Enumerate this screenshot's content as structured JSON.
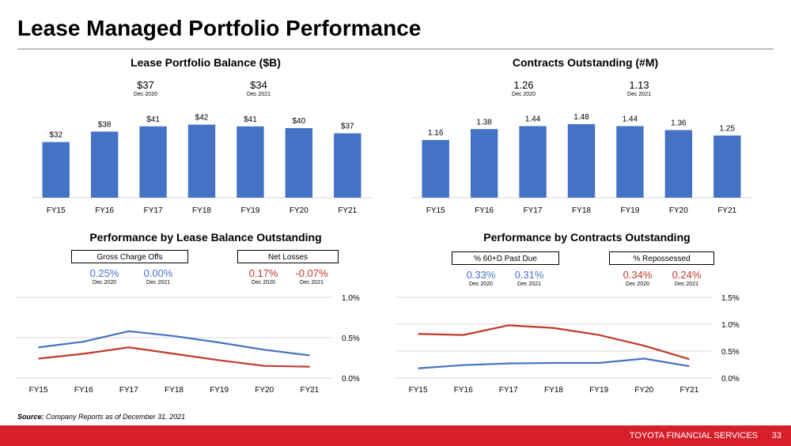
{
  "page": {
    "title": "Lease Managed Portfolio Performance",
    "source_label": "Source:",
    "source_text": "Company Reports as of December 31, 2021",
    "footer_brand": "TOYOTA FINANCIAL SERVICES",
    "page_number": "33"
  },
  "colors": {
    "bar": "#4472c4",
    "blue_line": "#4472c4",
    "red_line": "#c0392b",
    "footer": "#d71f2b"
  },
  "chart_data": [
    {
      "type": "bar",
      "title": "Lease Portfolio Balance ($B)",
      "categories": [
        "FY15",
        "FY16",
        "FY17",
        "FY18",
        "FY19",
        "FY20",
        "FY21"
      ],
      "values": [
        32,
        38,
        41,
        42,
        41,
        40,
        37
      ],
      "value_labels": [
        "$32",
        "$38",
        "$41",
        "$42",
        "$41",
        "$40",
        "$37"
      ],
      "highlights": [
        {
          "value": "$37",
          "period": "Dec 2020"
        },
        {
          "value": "$34",
          "period": "Dec 2021"
        }
      ]
    },
    {
      "type": "bar",
      "title": "Contracts Outstanding (#M)",
      "categories": [
        "FY15",
        "FY16",
        "FY17",
        "FY18",
        "FY19",
        "FY20",
        "FY21"
      ],
      "values": [
        1.16,
        1.38,
        1.44,
        1.48,
        1.44,
        1.36,
        1.25
      ],
      "value_labels": [
        "1.16",
        "1.38",
        "1.44",
        "1.48",
        "1.44",
        "1.36",
        "1.25"
      ],
      "highlights": [
        {
          "value": "1.26",
          "period": "Dec 2020"
        },
        {
          "value": "1.13",
          "period": "Dec 2021"
        }
      ]
    },
    {
      "type": "line",
      "title": "Performance by  Lease Balance Outstanding",
      "categories": [
        "FY15",
        "FY16",
        "FY17",
        "FY18",
        "FY19",
        "FY20",
        "FY21"
      ],
      "ylim": [
        0,
        1.0
      ],
      "yticks": [
        "0.0%",
        "0.5%",
        "1.0%"
      ],
      "series": [
        {
          "name": "Gross Charge Offs",
          "color": "#4472c4",
          "values": [
            0.38,
            0.45,
            0.58,
            0.52,
            0.44,
            0.35,
            0.28
          ],
          "metrics": [
            {
              "value": "0.25%",
              "period": "Dec 2020"
            },
            {
              "value": "0.00%",
              "period": "Dec 2021"
            }
          ]
        },
        {
          "name": "Net Losses",
          "color": "#c0392b",
          "values": [
            0.24,
            0.3,
            0.38,
            0.3,
            0.22,
            0.15,
            0.14
          ],
          "metrics": [
            {
              "value": "0.17%",
              "period": "Dec 2020"
            },
            {
              "value": "-0.07%",
              "period": "Dec 2021"
            }
          ]
        }
      ]
    },
    {
      "type": "line",
      "title": "Performance by  Contracts Outstanding",
      "categories": [
        "FY15",
        "FY16",
        "FY17",
        "FY18",
        "FY19",
        "FY20",
        "FY21"
      ],
      "ylim": [
        0,
        1.5
      ],
      "yticks": [
        "0.0%",
        "0.5%",
        "1.0%",
        "1.5%"
      ],
      "series": [
        {
          "name": "% 60+D Past Due",
          "color": "#4472c4",
          "values": [
            0.18,
            0.24,
            0.27,
            0.28,
            0.28,
            0.36,
            0.22
          ],
          "metrics": [
            {
              "value": "0.33%",
              "period": "Dec 2020"
            },
            {
              "value": "0.31%",
              "period": "Dec 2021"
            }
          ]
        },
        {
          "name": "% Repossessed",
          "color": "#c0392b",
          "values": [
            0.82,
            0.8,
            0.98,
            0.93,
            0.8,
            0.6,
            0.35
          ],
          "metrics": [
            {
              "value": "0.34%",
              "period": "Dec 2020"
            },
            {
              "value": "0.24%",
              "period": "Dec 2021"
            }
          ]
        }
      ]
    }
  ]
}
